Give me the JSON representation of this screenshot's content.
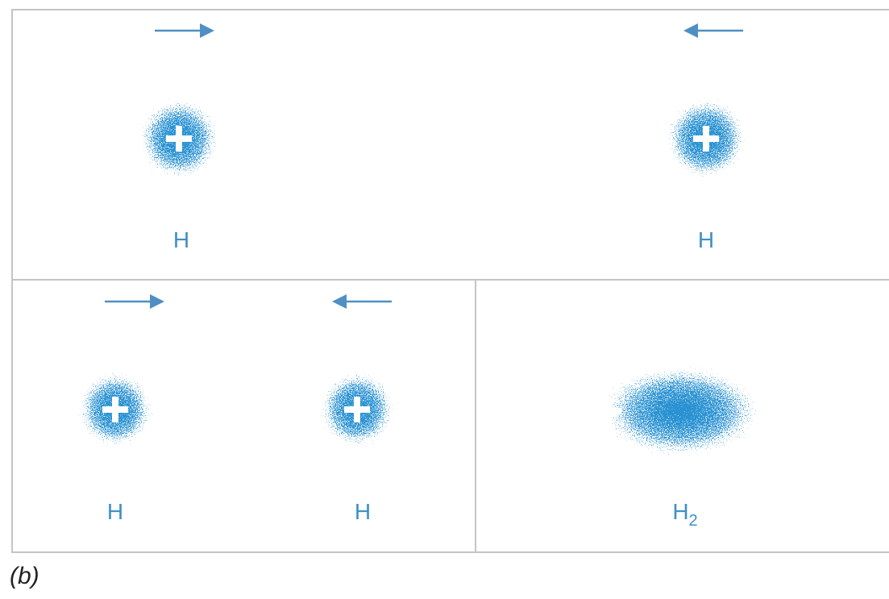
{
  "panels": [
    {
      "atoms": [
        {
          "label": "H"
        },
        {
          "label": "H"
        }
      ]
    },
    {
      "atoms": [
        {
          "label": "H"
        },
        {
          "label": "H"
        }
      ]
    },
    {
      "molecule": {
        "label": "H",
        "subscript": "2"
      }
    }
  ],
  "caption": "(b)"
}
